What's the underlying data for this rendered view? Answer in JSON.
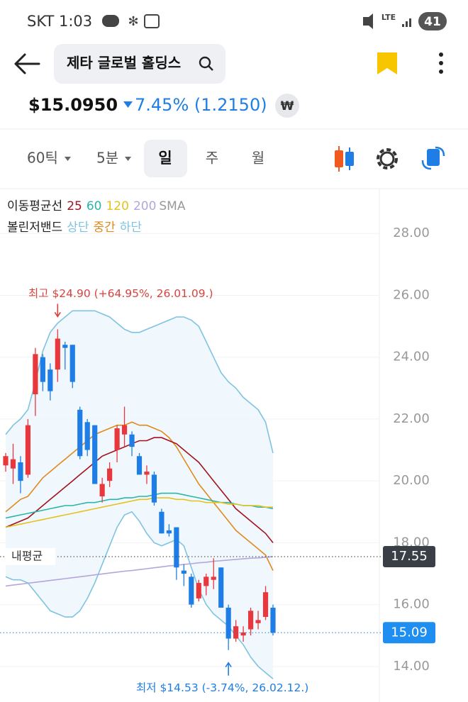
{
  "status_bar": {
    "carrier_time": "SKT 1:03",
    "network": "LTE",
    "battery": "41"
  },
  "header": {
    "title": "제타 글로벌 홀딩스"
  },
  "quote": {
    "price": "$15.0950",
    "change": "7.45% (1.2150)",
    "currency": "₩"
  },
  "tabs": [
    "60틱",
    "5분",
    "일",
    "주",
    "월"
  ],
  "chart_data": {
    "type": "candlestick",
    "legend": {
      "ma_title": "이동평균선",
      "ma_unit": "SMA",
      "bb_title": "볼린저밴드"
    },
    "up_color": "#e8383d",
    "down_color": "#1e7ee6",
    "open": [
      20.5,
      20.4,
      20.6,
      20.2,
      22.8,
      24.0,
      23.6,
      23.6,
      24.4,
      24.4,
      22.3,
      21.9,
      21.8,
      19.5,
      20.0,
      21.0,
      21.5,
      21.5,
      20.8,
      20.2,
      20.2,
      19.0,
      18.4,
      18.5,
      17.1,
      16.9,
      16.2,
      16.6,
      16.8,
      17.2,
      15.9,
      14.9,
      15.0,
      15.2,
      15.4,
      15.6,
      15.9
    ],
    "high": [
      20.9,
      21.2,
      20.8,
      22.0,
      24.3,
      24.1,
      23.8,
      24.9,
      24.5,
      24.4,
      22.4,
      22.0,
      21.8,
      20.1,
      20.6,
      21.8,
      22.4,
      21.6,
      20.9,
      20.5,
      20.3,
      19.1,
      18.6,
      18.5,
      17.3,
      17.0,
      16.8,
      17.0,
      17.5,
      17.2,
      16.0,
      15.5,
      15.3,
      15.9,
      15.8,
      16.6,
      16.0
    ],
    "low": [
      20.3,
      19.9,
      19.6,
      20.1,
      22.1,
      22.9,
      22.6,
      23.2,
      23.6,
      23.0,
      20.7,
      20.8,
      19.9,
      19.3,
      19.8,
      20.6,
      21.1,
      20.8,
      20.2,
      19.9,
      19.2,
      18.3,
      18.2,
      16.8,
      16.6,
      15.9,
      16.1,
      16.3,
      16.5,
      15.9,
      14.53,
      14.8,
      14.8,
      15.0,
      15.2,
      15.5,
      15.0
    ],
    "close": [
      20.8,
      20.7,
      20.0,
      21.8,
      24.1,
      23.2,
      22.9,
      24.6,
      24.3,
      23.2,
      20.8,
      21.0,
      19.9,
      19.9,
      20.4,
      21.7,
      21.8,
      21.1,
      20.2,
      20.3,
      19.3,
      18.3,
      18.3,
      17.2,
      17.0,
      16.0,
      16.7,
      16.9,
      16.9,
      15.9,
      14.9,
      15.3,
      15.1,
      15.8,
      15.5,
      16.4,
      15.09
    ],
    "ma_series": [
      {
        "name": "25",
        "color": "#a3131d",
        "values": [
          18.5,
          18.6,
          18.7,
          18.8,
          19.0,
          19.2,
          19.4,
          19.6,
          19.8,
          20.0,
          20.2,
          20.4,
          20.6,
          20.8,
          20.9,
          21.0,
          21.1,
          21.2,
          21.3,
          21.3,
          21.4,
          21.4,
          21.3,
          21.2,
          21.0,
          20.8,
          20.6,
          20.3,
          20.0,
          19.7,
          19.4,
          19.1,
          18.9,
          18.7,
          18.5,
          18.3,
          18.0
        ]
      },
      {
        "name": "60",
        "color": "#2bb5a8",
        "values": [
          18.8,
          18.85,
          18.9,
          18.95,
          19.0,
          19.05,
          19.1,
          19.15,
          19.2,
          19.2,
          19.25,
          19.3,
          19.3,
          19.35,
          19.4,
          19.4,
          19.45,
          19.45,
          19.5,
          19.5,
          19.55,
          19.6,
          19.6,
          19.6,
          19.55,
          19.5,
          19.45,
          19.4,
          19.35,
          19.3,
          19.3,
          19.25,
          19.2,
          19.2,
          19.15,
          19.15,
          19.1
        ]
      },
      {
        "name": "120",
        "color": "#e5c11e",
        "values": [
          18.5,
          18.55,
          18.6,
          18.65,
          18.7,
          18.75,
          18.8,
          18.85,
          18.9,
          18.95,
          19.0,
          19.05,
          19.1,
          19.15,
          19.2,
          19.25,
          19.3,
          19.35,
          19.4,
          19.4,
          19.45,
          19.45,
          19.45,
          19.4,
          19.4,
          19.35,
          19.35,
          19.3,
          19.3,
          19.3,
          19.25,
          19.25,
          19.2,
          19.2,
          19.2,
          19.15,
          19.15
        ]
      },
      {
        "name": "200",
        "color": "#b3a6dd",
        "values": [
          16.6,
          16.63,
          16.66,
          16.69,
          16.72,
          16.75,
          16.78,
          16.81,
          16.84,
          16.87,
          16.9,
          16.93,
          16.96,
          16.99,
          17.02,
          17.05,
          17.08,
          17.1,
          17.13,
          17.16,
          17.19,
          17.22,
          17.25,
          17.27,
          17.3,
          17.32,
          17.35,
          17.37,
          17.4,
          17.42,
          17.44,
          17.46,
          17.48,
          17.5,
          17.51,
          17.53,
          17.55
        ]
      }
    ],
    "bb_series": [
      {
        "name": "상단",
        "color": "#7fc3e0",
        "values": [
          21.5,
          21.8,
          22.0,
          22.3,
          23.2,
          24.2,
          24.8,
          25.1,
          25.3,
          25.5,
          25.5,
          25.5,
          25.5,
          25.4,
          25.3,
          25.1,
          24.9,
          24.8,
          24.8,
          24.9,
          25.0,
          25.1,
          25.2,
          25.3,
          25.3,
          25.2,
          25.0,
          24.5,
          24.0,
          23.5,
          23.2,
          23.0,
          22.7,
          22.5,
          22.3,
          21.9,
          20.9
        ]
      },
      {
        "name": "중간",
        "color": "#e08a1e",
        "values": [
          19.0,
          19.2,
          19.4,
          19.5,
          19.8,
          20.1,
          20.3,
          20.5,
          20.7,
          20.9,
          21.1,
          21.3,
          21.5,
          21.6,
          21.7,
          21.8,
          21.8,
          21.9,
          21.8,
          21.8,
          21.7,
          21.6,
          21.4,
          21.1,
          20.7,
          20.3,
          19.9,
          19.6,
          19.3,
          19.0,
          18.7,
          18.4,
          18.2,
          18.0,
          17.8,
          17.6,
          17.1
        ]
      },
      {
        "name": "하단",
        "color": "#7fc3e0",
        "values": [
          16.9,
          16.8,
          16.8,
          16.7,
          16.4,
          16.1,
          15.8,
          15.7,
          15.6,
          15.6,
          15.8,
          16.2,
          16.7,
          17.3,
          17.9,
          18.5,
          18.9,
          19.0,
          18.7,
          18.3,
          18.0,
          17.9,
          18.0,
          18.1,
          17.9,
          17.2,
          16.5,
          16.0,
          15.7,
          15.5,
          15.3,
          15.0,
          14.7,
          14.3,
          14.0,
          13.8,
          13.6
        ]
      }
    ],
    "ylim": [
      12.85,
      29.45
    ],
    "yticks": [
      {
        "value": 14,
        "label": "14.00"
      },
      {
        "value": 16,
        "label": "16.00"
      },
      {
        "value": 18,
        "label": "18.00"
      },
      {
        "value": 20,
        "label": "20.00"
      },
      {
        "value": 22,
        "label": "22.00"
      },
      {
        "value": 24,
        "label": "24.00"
      },
      {
        "value": 26,
        "label": "26.00"
      },
      {
        "value": 28,
        "label": "28.00"
      }
    ],
    "grid": true,
    "high_annotation": "최고 $24.90 (+64.95%, 26.01.09.)",
    "low_annotation": "최저 $14.53 (-3.74%, 26.02.12.)",
    "average": {
      "label": "내평균",
      "value": 17.55
    },
    "last_price": 15.09
  }
}
